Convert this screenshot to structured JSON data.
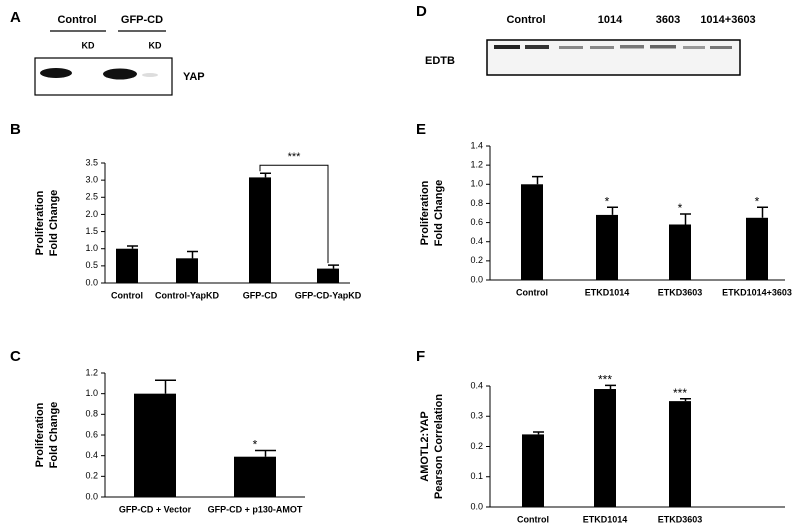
{
  "blots": [
    {
      "panel": "A",
      "groups": [
        "Control",
        "GFP-CD"
      ],
      "sublabels": [
        "KD",
        "KD"
      ],
      "target": "YAP"
    },
    {
      "panel": "D",
      "lanes": [
        "Control",
        "1014",
        "3603",
        "1014+3603"
      ],
      "target": "EDTB"
    }
  ],
  "chart_data": [
    {
      "type": "bar",
      "panel": "B",
      "ylabel": [
        "Proliferation",
        "Fold Change"
      ],
      "categories": [
        "Control",
        "Control-YapKD",
        "GFP-CD",
        "GFP-CD-YapKD"
      ],
      "values": [
        1.0,
        0.72,
        3.08,
        0.42
      ],
      "errors": [
        0.08,
        0.2,
        0.12,
        0.1
      ],
      "bracket_label": "***",
      "color": "#000000",
      "ylim": [
        0,
        3.5
      ],
      "yticks": [
        {
          "value": 0,
          "label": "0.0"
        },
        {
          "value": 0.5,
          "label": "0.5"
        },
        {
          "value": 1,
          "label": "1.0"
        },
        {
          "value": 1.5,
          "label": "1.5"
        },
        {
          "value": 2,
          "label": "2.0"
        },
        {
          "value": 2.5,
          "label": "2.5"
        },
        {
          "value": 3,
          "label": "3.0"
        },
        {
          "value": 3.5,
          "label": "3.5"
        }
      ]
    },
    {
      "type": "bar",
      "panel": "C",
      "ylabel": [
        "Proliferation",
        "Fold Change"
      ],
      "categories": [
        "GFP-CD + Vector",
        "GFP-CD + p130-AMOT"
      ],
      "values": [
        1.0,
        0.39
      ],
      "errors": [
        0.13,
        0.06
      ],
      "annotations": [
        null,
        "*"
      ],
      "color": "#000000",
      "ylim": [
        0,
        1.2
      ],
      "yticks": [
        {
          "value": 0,
          "label": "0.0"
        },
        {
          "value": 0.2,
          "label": "0.2"
        },
        {
          "value": 0.4,
          "label": "0.4"
        },
        {
          "value": 0.6,
          "label": "0.6"
        },
        {
          "value": 0.8,
          "label": "0.8"
        },
        {
          "value": 1,
          "label": "1.0"
        },
        {
          "value": 1.2,
          "label": "1.2"
        }
      ]
    },
    {
      "type": "bar",
      "panel": "E",
      "ylabel": [
        "Proliferation",
        "Fold Change"
      ],
      "categories": [
        "Control",
        "ETKD1014",
        "ETKD3603",
        "ETKD1014+3603"
      ],
      "values": [
        1.0,
        0.68,
        0.58,
        0.65
      ],
      "errors": [
        0.08,
        0.08,
        0.11,
        0.11
      ],
      "annotations": [
        null,
        "*",
        "*",
        "*"
      ],
      "color": "#000000",
      "ylim": [
        0,
        1.4
      ],
      "yticks": [
        {
          "value": 0,
          "label": "0.0"
        },
        {
          "value": 0.2,
          "label": "0.2"
        },
        {
          "value": 0.4,
          "label": "0.4"
        },
        {
          "value": 0.6,
          "label": "0.6"
        },
        {
          "value": 0.8,
          "label": "0.8"
        },
        {
          "value": 1,
          "label": "1.0"
        },
        {
          "value": 1.2,
          "label": "1.2"
        },
        {
          "value": 1.4,
          "label": "1.4"
        }
      ]
    },
    {
      "type": "bar",
      "panel": "F",
      "ylabel": [
        "AMOTL2:YAP",
        "Pearson Correlation"
      ],
      "categories": [
        "Control",
        "ETKD1014",
        "ETKD3603"
      ],
      "values": [
        0.24,
        0.39,
        0.35
      ],
      "errors": [
        0.008,
        0.012,
        0.008
      ],
      "annotations": [
        null,
        "***",
        "***"
      ],
      "color": "#000000",
      "ylim": [
        0,
        0.4
      ],
      "yticks": [
        {
          "value": 0,
          "label": "0.0"
        },
        {
          "value": 0.1,
          "label": "0.1"
        },
        {
          "value": 0.2,
          "label": "0.2"
        },
        {
          "value": 0.3,
          "label": "0.3"
        },
        {
          "value": 0.4,
          "label": "0.4"
        }
      ]
    }
  ]
}
